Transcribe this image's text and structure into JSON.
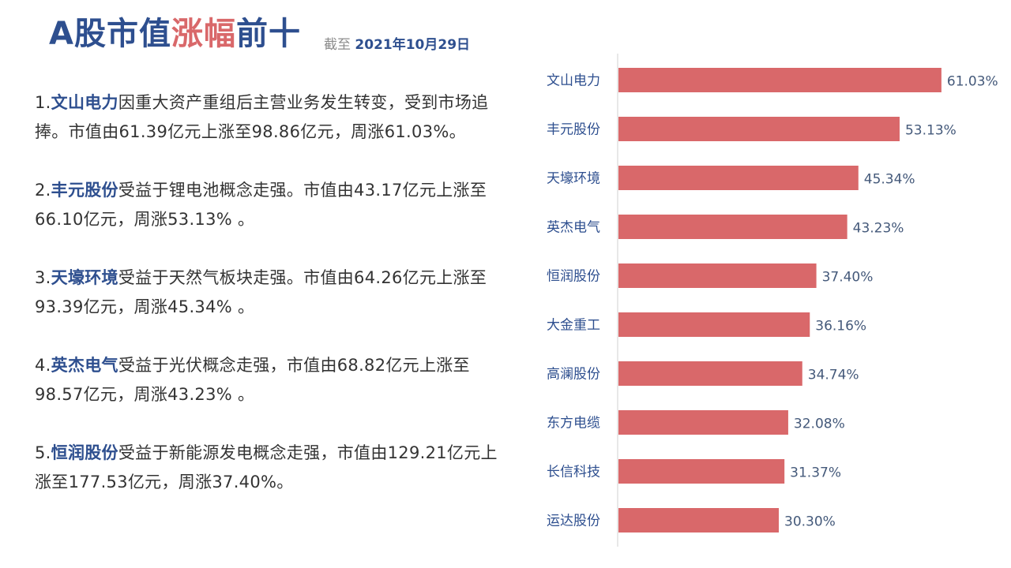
{
  "header": {
    "title_prefix": "A股市值",
    "title_accent": "涨幅",
    "title_suffix": "前十",
    "date_prefix": "截至",
    "date_value": "2021年10月29日"
  },
  "paragraphs": [
    {
      "num": "1.",
      "company": "文山电力",
      "text": "因重大资产重组后主营业务发生转变，受到市场追捧。市值由61.39亿元上涨至98.86亿元，周涨61.03%。"
    },
    {
      "num": "2.",
      "company": "丰元股份",
      "text": "受益于锂电池概念走强。市值由43.17亿元上涨至66.10亿元，周涨53.13% 。"
    },
    {
      "num": "3.",
      "company": "天壕环境",
      "text": "受益于天然气板块走强。市值由64.26亿元上涨至93.39亿元，周涨45.34% 。"
    },
    {
      "num": "4.",
      "company": "英杰电气",
      "text": "受益于光伏概念走强，市值由68.82亿元上涨至98.57亿元，周涨43.23% 。"
    },
    {
      "num": "5.",
      "company": "恒润股份",
      "text": "受益于新能源发电概念走强，市值由129.21亿元上涨至177.53亿元，周涨37.40%。"
    }
  ],
  "chart_data": {
    "type": "bar",
    "orientation": "horizontal",
    "categories": [
      "文山电力",
      "丰元股份",
      "天壕环境",
      "英杰电气",
      "恒润股份",
      "大金重工",
      "高澜股份",
      "东方电缆",
      "长信科技",
      "运达股份"
    ],
    "values": [
      61.03,
      53.13,
      45.34,
      43.23,
      37.4,
      36.16,
      34.74,
      32.08,
      31.37,
      30.3
    ],
    "value_labels": [
      "61.03%",
      "53.13%",
      "45.34%",
      "43.23%",
      "37.40%",
      "36.16%",
      "34.74%",
      "32.08%",
      "31.37%",
      "30.30%"
    ],
    "title": "",
    "xlabel": "",
    "ylabel": "",
    "grid": false,
    "bar_color": "#d9686a"
  }
}
